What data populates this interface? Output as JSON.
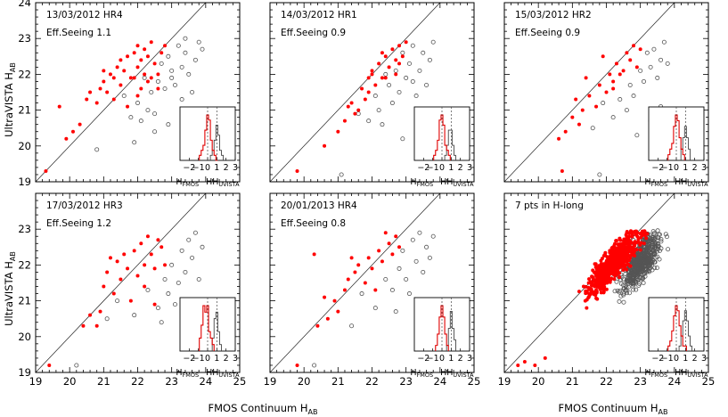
{
  "figure": {
    "ylabel_main": "UltraVISTA H",
    "ylabel_sub": "AB",
    "xlabel_main": "FMOS Continuum H",
    "xlabel_sub": "AB",
    "inset_xlabel_main": "H",
    "inset_xlabel_sub1": "FMOS",
    "inset_dash": "−H",
    "inset_xlabel_sub2": "UVISTA",
    "inset_ticks": [
      "−2",
      "−1",
      "0",
      "1",
      "2",
      "3"
    ],
    "x_ticks": [
      "19",
      "20",
      "21",
      "22",
      "23",
      "24",
      "25"
    ],
    "y_ticks": [
      "19",
      "20",
      "21",
      "22",
      "23",
      "24"
    ]
  },
  "chart_data": [
    {
      "type": "scatter",
      "title": "13/03/2012 HR4",
      "subtitle": "Eff.Seeing 1.1",
      "xlim": [
        19,
        25
      ],
      "ylim": [
        19,
        24
      ],
      "series": [
        {
          "marker": "filled",
          "color": "#ff0000",
          "x": [
            19.3,
            19.9,
            20.1,
            20.3,
            20.5,
            20.6,
            20.8,
            20.9,
            21.0,
            21.1,
            21.2,
            21.3,
            21.4,
            21.5,
            21.5,
            21.6,
            21.7,
            21.8,
            21.9,
            22.0,
            22.0,
            22.1,
            22.1,
            22.2,
            22.2,
            22.3,
            22.3,
            22.4,
            22.5,
            22.6,
            22.7,
            22.8,
            21.0,
            21.3,
            21.7,
            22.0,
            22.4,
            22.6,
            19.7,
            21.9
          ],
          "y": [
            19.3,
            20.2,
            20.4,
            20.6,
            21.3,
            21.5,
            21.2,
            21.6,
            21.8,
            21.5,
            22.0,
            21.9,
            22.2,
            21.7,
            22.4,
            22.1,
            22.5,
            21.9,
            22.6,
            22.2,
            22.8,
            21.6,
            22.4,
            22.0,
            22.7,
            21.8,
            22.5,
            22.9,
            22.3,
            22.0,
            22.6,
            22.8,
            22.1,
            21.3,
            21.1,
            21.4,
            21.9,
            21.6,
            21.1,
            21.9
          ]
        },
        {
          "marker": "open",
          "color": "#555555",
          "x": [
            21.6,
            21.8,
            22.0,
            22.1,
            22.3,
            22.4,
            22.5,
            22.6,
            22.7,
            22.8,
            22.9,
            23.0,
            23.1,
            23.2,
            23.3,
            23.4,
            23.5,
            23.6,
            23.7,
            23.8,
            22.2,
            22.9,
            23.3,
            23.6,
            21.9,
            20.8,
            22.5,
            23.0,
            23.4,
            23.9
          ],
          "y": [
            21.4,
            20.8,
            21.2,
            20.7,
            21.0,
            21.5,
            20.9,
            21.8,
            22.3,
            21.6,
            22.5,
            22.1,
            21.7,
            22.8,
            22.2,
            22.6,
            22.0,
            21.5,
            22.4,
            22.9,
            21.9,
            20.6,
            21.3,
            20.3,
            20.1,
            19.9,
            20.4,
            21.9,
            23.0,
            22.7
          ]
        }
      ],
      "inset": {
        "xlim": [
          -3,
          3
        ],
        "fmos_vals": [
          -0.8,
          -0.6,
          -0.4,
          -0.2,
          0.0,
          0.2,
          0.4,
          0.6,
          0.8,
          1.0
        ],
        "fmos_counts": [
          1,
          2,
          3,
          6,
          9,
          8,
          4,
          2,
          1,
          0
        ],
        "uvista_vals": [
          0.4,
          0.6,
          0.8,
          1.0,
          1.2,
          1.4,
          1.6
        ],
        "uvista_counts": [
          1,
          2,
          4,
          7,
          5,
          2,
          1
        ]
      }
    },
    {
      "type": "scatter",
      "title": "14/03/2012 HR1",
      "subtitle": "Eff.Seeing 0.9",
      "xlim": [
        19,
        25
      ],
      "ylim": [
        19,
        24
      ],
      "series": [
        {
          "marker": "filled",
          "color": "#ff0000",
          "x": [
            19.8,
            20.6,
            21.0,
            21.2,
            21.4,
            21.5,
            21.7,
            21.8,
            21.9,
            22.0,
            22.1,
            22.2,
            22.3,
            22.4,
            22.5,
            22.6,
            22.7,
            22.8,
            22.9,
            23.0,
            21.6,
            22.0,
            22.3,
            22.7,
            21.3,
            21.9,
            22.4,
            22.8
          ],
          "y": [
            19.3,
            20.0,
            20.4,
            20.7,
            21.2,
            20.9,
            21.6,
            21.3,
            21.9,
            22.1,
            21.7,
            22.3,
            21.9,
            22.5,
            22.2,
            22.7,
            22.4,
            22.8,
            22.5,
            22.9,
            21.0,
            22.0,
            22.6,
            22.0,
            21.1,
            21.5,
            21.9,
            22.3
          ]
        },
        {
          "marker": "open",
          "color": "#555555",
          "x": [
            21.6,
            21.9,
            22.1,
            22.2,
            22.3,
            22.5,
            22.6,
            22.7,
            22.8,
            22.9,
            23.0,
            23.1,
            23.2,
            23.3,
            23.4,
            23.5,
            23.6,
            23.7,
            23.8,
            22.4,
            22.9,
            23.2,
            21.1,
            23.5
          ],
          "y": [
            20.9,
            20.7,
            21.4,
            21.0,
            20.6,
            21.7,
            21.2,
            22.1,
            21.5,
            22.6,
            21.9,
            22.3,
            22.8,
            21.4,
            22.1,
            22.6,
            21.7,
            22.4,
            22.9,
            22.0,
            20.2,
            21.8,
            19.2,
            20.8
          ]
        }
      ],
      "inset": {
        "xlim": [
          -3,
          3
        ],
        "fmos_vals": [
          -0.8,
          -0.6,
          -0.4,
          -0.2,
          0.0,
          0.2,
          0.4,
          0.6,
          0.8
        ],
        "fmos_counts": [
          1,
          2,
          4,
          8,
          9,
          7,
          3,
          2,
          1
        ],
        "uvista_vals": [
          0.4,
          0.6,
          0.8,
          1.0,
          1.2,
          1.4
        ],
        "uvista_counts": [
          1,
          3,
          6,
          6,
          3,
          1
        ]
      }
    },
    {
      "type": "scatter",
      "title": "15/03/2012 HR2",
      "subtitle": "Eff.Seeing 0.9",
      "xlim": [
        19,
        25
      ],
      "ylim": [
        19,
        24
      ],
      "series": [
        {
          "marker": "filled",
          "color": "#ff0000",
          "x": [
            20.6,
            20.8,
            21.0,
            21.2,
            21.3,
            21.5,
            21.7,
            21.8,
            22.0,
            22.1,
            22.2,
            22.3,
            22.5,
            22.6,
            22.7,
            22.8,
            22.9,
            21.4,
            21.9,
            22.4,
            20.7,
            22.2,
            23.0,
            21.1
          ],
          "y": [
            20.2,
            20.4,
            20.8,
            20.6,
            21.0,
            21.4,
            21.1,
            21.7,
            21.5,
            22.0,
            21.8,
            22.3,
            22.1,
            22.6,
            22.4,
            22.8,
            22.2,
            21.9,
            22.5,
            22.0,
            19.3,
            21.6,
            22.7,
            21.3
          ]
        },
        {
          "marker": "open",
          "color": "#555555",
          "x": [
            21.6,
            21.9,
            22.2,
            22.4,
            22.6,
            22.7,
            22.8,
            23.0,
            23.1,
            23.2,
            23.3,
            23.4,
            23.5,
            23.6,
            23.7,
            23.8,
            22.9,
            23.3,
            21.8,
            23.6
          ],
          "y": [
            20.5,
            21.2,
            20.8,
            21.3,
            21.0,
            21.7,
            21.4,
            22.1,
            21.8,
            22.6,
            22.2,
            22.7,
            21.9,
            22.4,
            22.9,
            22.3,
            20.3,
            20.7,
            19.2,
            21.1
          ]
        }
      ],
      "inset": {
        "xlim": [
          -3,
          3
        ],
        "fmos_vals": [
          -0.8,
          -0.6,
          -0.4,
          -0.2,
          0.0,
          0.2,
          0.4,
          0.6,
          0.8
        ],
        "fmos_counts": [
          1,
          2,
          3,
          6,
          8,
          7,
          4,
          2,
          1
        ],
        "uvista_vals": [
          0.6,
          0.8,
          1.0,
          1.2,
          1.4
        ],
        "uvista_counts": [
          2,
          4,
          6,
          4,
          2
        ]
      }
    },
    {
      "type": "scatter",
      "title": "17/03/2012 HR3",
      "subtitle": "Eff.Seeing 1.2",
      "xlim": [
        19,
        25
      ],
      "ylim": [
        19,
        24
      ],
      "series": [
        {
          "marker": "filled",
          "color": "#ff0000",
          "x": [
            19.4,
            20.4,
            20.6,
            20.8,
            21.0,
            21.1,
            21.3,
            21.4,
            21.5,
            21.6,
            21.7,
            21.9,
            22.0,
            22.1,
            22.2,
            22.3,
            22.4,
            22.5,
            22.6,
            22.7,
            21.8,
            22.2,
            20.9,
            22.5,
            21.2,
            22.8
          ],
          "y": [
            19.2,
            20.3,
            20.6,
            20.3,
            21.4,
            21.8,
            21.2,
            22.1,
            21.6,
            22.3,
            21.9,
            22.4,
            21.7,
            22.6,
            22.0,
            22.8,
            22.3,
            21.9,
            22.7,
            22.5,
            21.0,
            21.4,
            20.7,
            20.9,
            22.2,
            22.0
          ]
        },
        {
          "marker": "open",
          "color": "#555555",
          "x": [
            21.4,
            21.9,
            22.3,
            22.6,
            22.8,
            22.9,
            23.0,
            23.2,
            23.3,
            23.4,
            23.5,
            23.6,
            23.7,
            23.8,
            23.9,
            22.7,
            23.1,
            23.5,
            20.2,
            21.1
          ],
          "y": [
            21.0,
            20.6,
            21.3,
            20.8,
            21.6,
            21.2,
            22.0,
            21.5,
            22.4,
            21.8,
            22.7,
            22.2,
            22.9,
            21.6,
            22.5,
            20.4,
            20.9,
            20.0,
            19.2,
            20.5
          ]
        }
      ],
      "inset": {
        "xlim": [
          -3,
          3
        ],
        "fmos_vals": [
          -0.8,
          -0.6,
          -0.4,
          -0.2,
          0.0,
          0.2,
          0.4,
          0.6
        ],
        "fmos_counts": [
          2,
          4,
          7,
          6,
          7,
          3,
          2,
          1
        ],
        "uvista_vals": [
          0.6,
          0.8,
          1.0,
          1.2,
          1.4
        ],
        "uvista_counts": [
          2,
          5,
          6,
          3,
          1
        ]
      }
    },
    {
      "type": "scatter",
      "title": "20/01/2013 HR4",
      "subtitle": "Eff.Seeing 0.8",
      "xlim": [
        19,
        25
      ],
      "ylim": [
        19,
        24
      ],
      "series": [
        {
          "marker": "filled",
          "color": "#ff0000",
          "x": [
            19.8,
            20.4,
            20.7,
            20.9,
            21.0,
            21.2,
            21.3,
            21.5,
            21.6,
            21.8,
            21.9,
            22.0,
            22.2,
            22.3,
            22.5,
            22.6,
            22.7,
            22.8,
            20.3,
            21.4,
            22.1,
            22.4,
            20.6
          ],
          "y": [
            19.2,
            20.3,
            20.5,
            21.0,
            20.7,
            21.3,
            21.6,
            21.8,
            22.0,
            21.5,
            22.2,
            21.9,
            22.4,
            22.1,
            22.6,
            22.3,
            22.8,
            22.5,
            22.3,
            22.2,
            21.3,
            22.9,
            21.1
          ]
        },
        {
          "marker": "open",
          "color": "#555555",
          "x": [
            21.7,
            22.1,
            22.4,
            22.6,
            22.8,
            22.9,
            23.0,
            23.2,
            23.3,
            23.4,
            23.5,
            23.6,
            23.7,
            23.8,
            22.7,
            23.1,
            20.3,
            21.4
          ],
          "y": [
            21.2,
            20.8,
            21.6,
            21.3,
            21.9,
            22.4,
            21.6,
            22.7,
            22.1,
            22.9,
            21.8,
            22.5,
            22.2,
            22.8,
            20.7,
            21.2,
            19.2,
            20.3
          ]
        }
      ],
      "inset": {
        "xlim": [
          -3,
          3
        ],
        "fmos_vals": [
          -0.6,
          -0.4,
          -0.2,
          0.0,
          0.2,
          0.4,
          0.6
        ],
        "fmos_counts": [
          1,
          3,
          6,
          8,
          6,
          3,
          1
        ],
        "uvista_vals": [
          0.6,
          0.8,
          1.0,
          1.2,
          1.4
        ],
        "uvista_counts": [
          1,
          4,
          7,
          4,
          2
        ]
      }
    },
    {
      "type": "scatter",
      "title": "7 pts in H-long",
      "subtitle": "",
      "xlim": [
        19,
        25
      ],
      "ylim": [
        19,
        24
      ],
      "series": [
        {
          "marker": "filled",
          "color": "#ff0000",
          "generated_cloud": true
        },
        {
          "marker": "open",
          "color": "#555555",
          "generated_cloud": true
        }
      ],
      "inset": {
        "xlim": [
          -3,
          3
        ],
        "fmos_vals": [
          -0.8,
          -0.6,
          -0.4,
          -0.2,
          0.0,
          0.2,
          0.4,
          0.6,
          0.8,
          1.0
        ],
        "fmos_counts": [
          1,
          2,
          4,
          7,
          9,
          8,
          5,
          3,
          1,
          1
        ],
        "uvista_vals": [
          0.4,
          0.6,
          0.8,
          1.0,
          1.2,
          1.4,
          1.6
        ],
        "uvista_counts": [
          1,
          3,
          6,
          8,
          6,
          3,
          1
        ]
      }
    }
  ]
}
